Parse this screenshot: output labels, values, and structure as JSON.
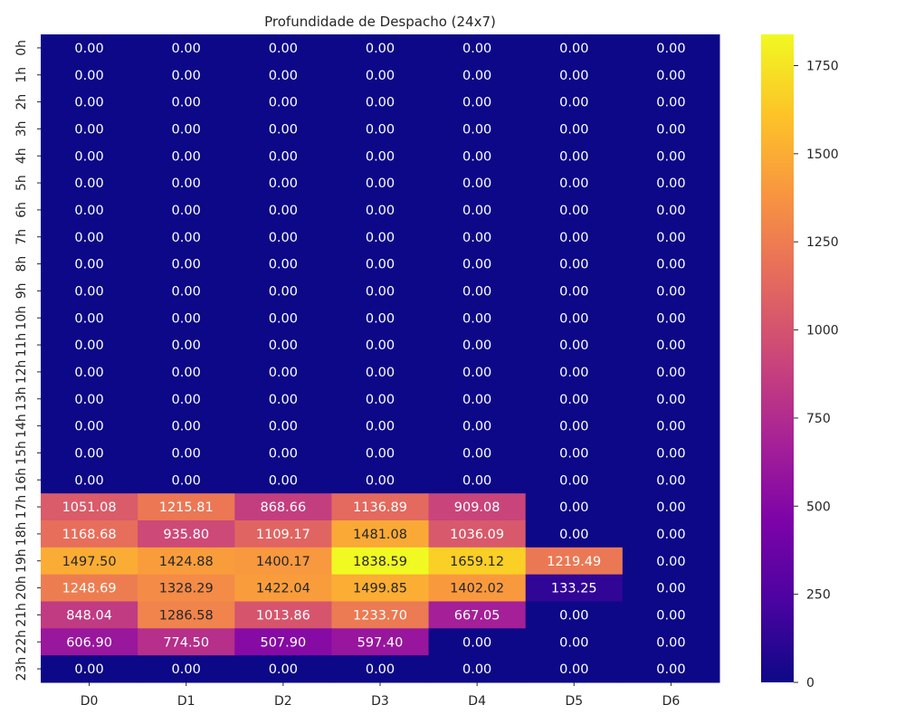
{
  "chart_data": {
    "type": "heatmap",
    "title": "Profundidade de Despacho (24x7)",
    "xlabel": "",
    "ylabel": "",
    "x_categories": [
      "D0",
      "D1",
      "D2",
      "D3",
      "D4",
      "D5",
      "D6"
    ],
    "y_categories": [
      "0h",
      "1h",
      "2h",
      "3h",
      "4h",
      "5h",
      "6h",
      "7h",
      "8h",
      "9h",
      "10h",
      "11h",
      "12h",
      "13h",
      "14h",
      "15h",
      "16h",
      "17h",
      "18h",
      "19h",
      "20h",
      "21h",
      "22h",
      "23h"
    ],
    "values": [
      [
        0,
        0,
        0,
        0,
        0,
        0,
        0
      ],
      [
        0,
        0,
        0,
        0,
        0,
        0,
        0
      ],
      [
        0,
        0,
        0,
        0,
        0,
        0,
        0
      ],
      [
        0,
        0,
        0,
        0,
        0,
        0,
        0
      ],
      [
        0,
        0,
        0,
        0,
        0,
        0,
        0
      ],
      [
        0,
        0,
        0,
        0,
        0,
        0,
        0
      ],
      [
        0,
        0,
        0,
        0,
        0,
        0,
        0
      ],
      [
        0,
        0,
        0,
        0,
        0,
        0,
        0
      ],
      [
        0,
        0,
        0,
        0,
        0,
        0,
        0
      ],
      [
        0,
        0,
        0,
        0,
        0,
        0,
        0
      ],
      [
        0,
        0,
        0,
        0,
        0,
        0,
        0
      ],
      [
        0,
        0,
        0,
        0,
        0,
        0,
        0
      ],
      [
        0,
        0,
        0,
        0,
        0,
        0,
        0
      ],
      [
        0,
        0,
        0,
        0,
        0,
        0,
        0
      ],
      [
        0,
        0,
        0,
        0,
        0,
        0,
        0
      ],
      [
        0,
        0,
        0,
        0,
        0,
        0,
        0
      ],
      [
        0,
        0,
        0,
        0,
        0,
        0,
        0
      ],
      [
        1051.08,
        1215.81,
        868.66,
        1136.89,
        909.08,
        0,
        0
      ],
      [
        1168.68,
        935.8,
        1109.17,
        1481.08,
        1036.09,
        0,
        0
      ],
      [
        1497.5,
        1424.88,
        1400.17,
        1838.59,
        1659.12,
        1219.49,
        0
      ],
      [
        1248.69,
        1328.29,
        1422.04,
        1499.85,
        1402.02,
        133.25,
        0
      ],
      [
        848.04,
        1286.58,
        1013.86,
        1233.7,
        667.05,
        0,
        0
      ],
      [
        606.9,
        774.5,
        507.9,
        597.4,
        0,
        0,
        0
      ],
      [
        0,
        0,
        0,
        0,
        0,
        0,
        0
      ]
    ],
    "value_format_decimals": 2,
    "colormap": "plasma",
    "colorbar": {
      "range": [
        0,
        1838.59
      ],
      "ticks": [
        0,
        250,
        500,
        750,
        1000,
        1250,
        1500,
        1750
      ]
    },
    "grid": false,
    "legend": "colorbar-right"
  }
}
